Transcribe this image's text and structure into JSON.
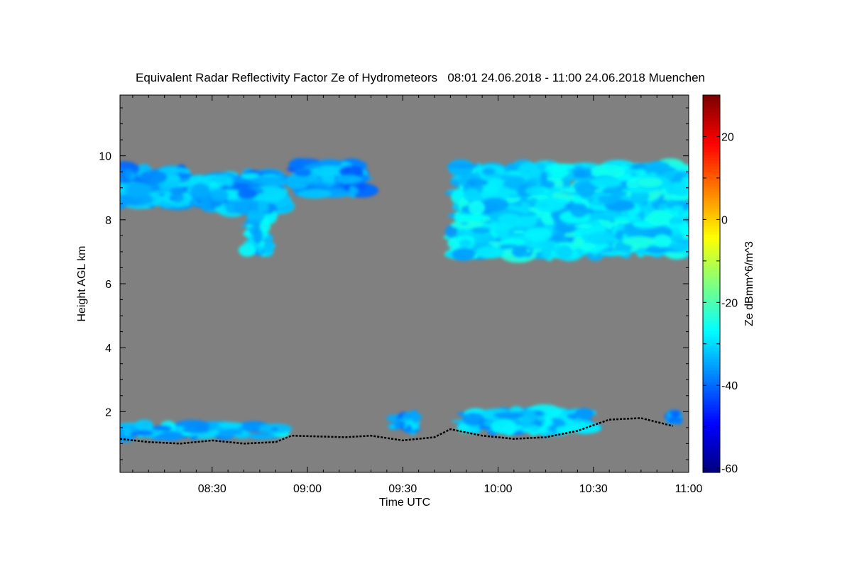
{
  "chart_data": {
    "type": "heatmap",
    "title": "Equivalent Radar Reflectivity Factor Ze of Hydrometeors   08:01 24.06.2018 - 11:00 24.06.2018 Muenchen",
    "xlabel": "Time UTC",
    "ylabel": "Height AGL km",
    "colorbar_label": "Ze dBmm^6/m^3",
    "x_range_minutes": [
      481,
      660
    ],
    "ylim": [
      0.1,
      11.9
    ],
    "zlim": [
      -61,
      30
    ],
    "x_ticks": [
      {
        "minute": 510,
        "label": "08:30"
      },
      {
        "minute": 540,
        "label": "09:00"
      },
      {
        "minute": 570,
        "label": "09:30"
      },
      {
        "minute": 600,
        "label": "10:00"
      },
      {
        "minute": 630,
        "label": "10:30"
      },
      {
        "minute": 660,
        "label": "11:00"
      }
    ],
    "y_ticks": [
      {
        "value": 2,
        "label": "2"
      },
      {
        "value": 4,
        "label": "4"
      },
      {
        "value": 6,
        "label": "6"
      },
      {
        "value": 8,
        "label": "8"
      },
      {
        "value": 10,
        "label": "10"
      }
    ],
    "colorbar_ticks": [
      {
        "value": 20,
        "label": "20"
      },
      {
        "value": 0,
        "label": "0"
      },
      {
        "value": -20,
        "label": "-20"
      },
      {
        "value": -40,
        "label": "-40"
      },
      {
        "value": -60,
        "label": "-60"
      }
    ],
    "colormap": "jet",
    "background_color": "#808080",
    "cloud_regions": [
      {
        "name": "upper-left-cirrus-1",
        "x_start": 481,
        "x_end": 502,
        "y_bottom": 8.5,
        "y_top": 9.6,
        "ze_mean": -35
      },
      {
        "name": "upper-left-cirrus-2",
        "x_start": 505,
        "x_end": 532,
        "y_bottom": 8.3,
        "y_top": 9.4,
        "ze_mean": -34
      },
      {
        "name": "fallstreak",
        "x_start": 521,
        "x_end": 528,
        "y_bottom": 7.0,
        "y_top": 8.4,
        "ze_mean": -32
      },
      {
        "name": "upper-cirrus-3",
        "x_start": 537,
        "x_end": 558,
        "y_bottom": 8.8,
        "y_top": 9.8,
        "ze_mean": -36
      },
      {
        "name": "upper-right-cirrostratus",
        "x_start": 587,
        "x_end": 660,
        "y_bottom": 6.9,
        "y_top": 9.7,
        "ze_mean": -30
      },
      {
        "name": "low-cloud-left",
        "x_start": 481,
        "x_end": 532,
        "y_bottom": 1.2,
        "y_top": 1.6,
        "ze_mean": -33
      },
      {
        "name": "low-cloud-mid",
        "x_start": 567,
        "x_end": 574,
        "y_bottom": 1.4,
        "y_top": 1.9,
        "ze_mean": -34
      },
      {
        "name": "low-cloud-right",
        "x_start": 590,
        "x_end": 628,
        "y_bottom": 1.4,
        "y_top": 2.0,
        "ze_mean": -33
      },
      {
        "name": "low-cloud-edge",
        "x_start": 654,
        "x_end": 657,
        "y_bottom": 1.7,
        "y_top": 2.0,
        "ze_mean": -36
      }
    ],
    "cloud_base_line": [
      [
        481,
        1.15
      ],
      [
        490,
        1.05
      ],
      [
        500,
        1.0
      ],
      [
        510,
        1.1
      ],
      [
        520,
        1.0
      ],
      [
        530,
        1.05
      ],
      [
        535,
        1.25
      ],
      [
        552,
        1.2
      ],
      [
        560,
        1.25
      ],
      [
        570,
        1.1
      ],
      [
        580,
        1.2
      ],
      [
        585,
        1.45
      ],
      [
        595,
        1.25
      ],
      [
        605,
        1.15
      ],
      [
        615,
        1.2
      ],
      [
        625,
        1.4
      ],
      [
        635,
        1.75
      ],
      [
        645,
        1.8
      ],
      [
        655,
        1.55
      ]
    ]
  }
}
